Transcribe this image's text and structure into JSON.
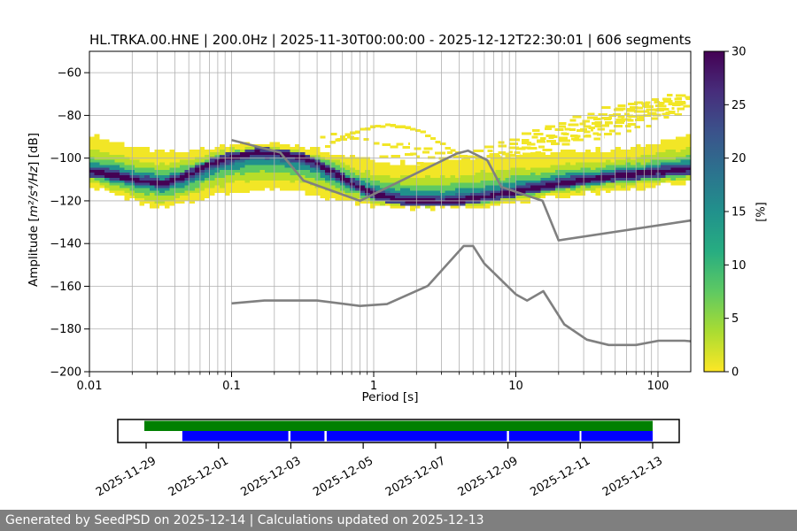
{
  "figure": {
    "background": "#ffffff",
    "footer_background": "#7f7f7f"
  },
  "footer": {
    "text": "Generated by SeedPSD on 2025-12-14 | Calculations updated on 2025-12-13"
  },
  "chart_data": [
    {
      "type": "heatmap",
      "title": "HL.TRKA.00.HNE | 200.0Hz | 2025-11-30T00:00:00 - 2025-12-12T22:30:01 | 606 segments",
      "xlabel": "Period [s]",
      "ylabel": "Amplitude [m²/s⁴/Hz] [dB]",
      "ylabel_parts": {
        "prefix": "Amplitude [",
        "math": "m²/s⁴/Hz",
        "suffix": "] [dB]"
      },
      "x_scale": "log",
      "xlim": [
        0.01,
        170
      ],
      "ylim": [
        -200,
        -50
      ],
      "grid": true,
      "x_major_ticks": [
        0.01,
        0.1,
        1,
        10,
        100
      ],
      "x_major_tick_labels": [
        "0.01",
        "0.1",
        "1",
        "10",
        "100"
      ],
      "y_ticks": [
        -60,
        -80,
        -100,
        -120,
        -140,
        -160,
        -180,
        -200
      ],
      "colorbar": {
        "label": "[%]",
        "min": 0,
        "max": 30,
        "ticks": [
          0,
          5,
          10,
          15,
          20,
          25,
          30
        ],
        "colormap": "viridis_r",
        "stops_top_to_bottom": [
          "#440154",
          "#472d7b",
          "#3b528b",
          "#2c728e",
          "#21918c",
          "#27ad81",
          "#5ec962",
          "#aadc32",
          "#fde725"
        ]
      },
      "density": {
        "description": "PPSD 2D histogram percentile summary: upper envelope, mode ridge, lower envelope (dB) vs period (s)",
        "periods": [
          0.01,
          0.015,
          0.022,
          0.033,
          0.05,
          0.07,
          0.1,
          0.15,
          0.22,
          0.33,
          0.5,
          0.7,
          1.0,
          1.4,
          2.0,
          3.0,
          4.5,
          7.0,
          10,
          15,
          22,
          33,
          50,
          70,
          100,
          140,
          165
        ],
        "max_db": [
          -89,
          -92,
          -95,
          -97,
          -97,
          -95,
          -93,
          -93,
          -94,
          -95,
          -97,
          -99,
          -101,
          -102,
          -102,
          -101,
          -100,
          -99,
          -98,
          -97.5,
          -97,
          -96.5,
          -96,
          -95.5,
          -92,
          -90.5,
          -90
        ],
        "mode_db": [
          -106,
          -108,
          -110.5,
          -112,
          -108,
          -103,
          -99.5,
          -97.5,
          -98,
          -100,
          -106,
          -112,
          -117,
          -119,
          -120,
          -120.5,
          -119.5,
          -117.5,
          -115.5,
          -113.5,
          -111.5,
          -110,
          -108.5,
          -107.5,
          -106.5,
          -105.5,
          -105
        ],
        "min_db": [
          -113,
          -117,
          -121,
          -124,
          -121,
          -118,
          -116,
          -115,
          -114.5,
          -116,
          -119,
          -121,
          -122.5,
          -123,
          -123.5,
          -123.5,
          -123,
          -122,
          -121,
          -119.5,
          -118,
          -116.5,
          -115.5,
          -114.5,
          -113.5,
          -112.5,
          -112
        ]
      },
      "event_curve": {
        "color": "#f2e626",
        "periods": [
          0.45,
          0.6,
          0.8,
          1.0,
          1.3,
          1.7,
          2.2,
          2.8,
          3.5,
          4.2
        ],
        "db": [
          -95,
          -90,
          -87,
          -85.5,
          -84.5,
          -85.5,
          -88,
          -92,
          -96,
          -99
        ]
      },
      "outlier_streaks": [
        [
          0.42,
          0.75,
          -89.5
        ],
        [
          0.55,
          0.95,
          -91.5
        ],
        [
          1.0,
          1.8,
          -93
        ],
        [
          1.3,
          2.6,
          -95.5
        ],
        [
          1.8,
          3.6,
          -97.5
        ],
        [
          2.4,
          5.0,
          -99.5
        ],
        [
          1.1,
          2.1,
          -99
        ],
        [
          3.0,
          6.5,
          -101.5
        ],
        [
          2.0,
          4.2,
          -103
        ],
        [
          4.0,
          8.0,
          -99
        ],
        [
          5.0,
          9.5,
          -97
        ],
        [
          6.0,
          13,
          -95
        ],
        [
          7.5,
          17,
          -93
        ],
        [
          9,
          22,
          -91
        ],
        [
          11,
          28,
          -89
        ],
        [
          13,
          35,
          -87
        ],
        [
          16,
          45,
          -85
        ],
        [
          20,
          60,
          -83
        ],
        [
          25,
          75,
          -81
        ],
        [
          32,
          95,
          -79
        ],
        [
          40,
          120,
          -77
        ],
        [
          52,
          150,
          -75
        ],
        [
          68,
          168,
          -73.5
        ],
        [
          90,
          168,
          -72
        ],
        [
          115,
          168,
          -71
        ],
        [
          8,
          15,
          -97.5
        ],
        [
          14,
          30,
          -92
        ],
        [
          18,
          40,
          -89.5
        ],
        [
          28,
          70,
          -84
        ],
        [
          45,
          110,
          -80
        ],
        [
          60,
          140,
          -78
        ],
        [
          80,
          168,
          -75.5
        ],
        [
          100,
          168,
          -74
        ],
        [
          35,
          85,
          -82
        ],
        [
          22,
          50,
          -86.5
        ],
        [
          12,
          24,
          -94
        ],
        [
          50,
          130,
          -76.5
        ],
        [
          6.5,
          11,
          -98.5
        ],
        [
          130,
          168,
          -72.5
        ],
        [
          95,
          160,
          -77.5
        ],
        [
          70,
          150,
          -79.5
        ],
        [
          55,
          120,
          -81.5
        ],
        [
          40,
          90,
          -85.5
        ],
        [
          30,
          65,
          -88
        ],
        [
          20,
          42,
          -90.5
        ],
        [
          10,
          18,
          -96
        ]
      ],
      "noise_models": {
        "color": "#808080",
        "nhnm": {
          "periods": [
            0.1,
            0.22,
            0.32,
            0.8,
            3.8,
            4.6,
            6.3,
            7.9,
            15.4,
            20.0,
            354.8
          ],
          "db": [
            -91.5,
            -97.4,
            -110.5,
            -120.0,
            -98.0,
            -96.5,
            -101.0,
            -113.5,
            -120.0,
            -138.5,
            -126.0
          ]
        },
        "nlnm": {
          "periods": [
            0.1,
            0.17,
            0.4,
            0.8,
            1.24,
            2.4,
            4.3,
            5.0,
            6.0,
            10.0,
            12.0,
            15.6,
            21.9,
            31.6,
            45.0,
            70.0,
            101.0,
            154.0,
            328.0
          ],
          "db": [
            -168.0,
            -166.7,
            -166.7,
            -169.2,
            -168.35,
            -159.86,
            -141.1,
            -141.1,
            -149.35,
            -163.79,
            -166.7,
            -162.28,
            -177.84,
            -185.0,
            -187.5,
            -187.5,
            -185.5,
            -185.5,
            -187.5
          ]
        }
      }
    },
    {
      "type": "bar",
      "name": "availability-timeline",
      "orientation": "horizontal-timeline",
      "tick_labels": [
        "2025-11-29",
        "2025-12-01",
        "2025-12-03",
        "2025-12-05",
        "2025-12-07",
        "2025-12-09",
        "2025-12-11",
        "2025-12-13"
      ],
      "tick_interval_days": 2,
      "axis_range_days": [
        -0.78,
        14.73
      ],
      "series": [
        {
          "name": "data-availability",
          "color": "#008000",
          "segments_days": [
            [
              -0.05,
              14.0
            ]
          ]
        },
        {
          "name": "psd-coverage",
          "color": "#0000ff",
          "segments_days": [
            [
              1.0,
              3.93
            ],
            [
              3.99,
              4.93
            ],
            [
              4.99,
              9.97
            ],
            [
              10.03,
              11.98
            ],
            [
              12.03,
              14.0
            ]
          ]
        }
      ]
    }
  ]
}
